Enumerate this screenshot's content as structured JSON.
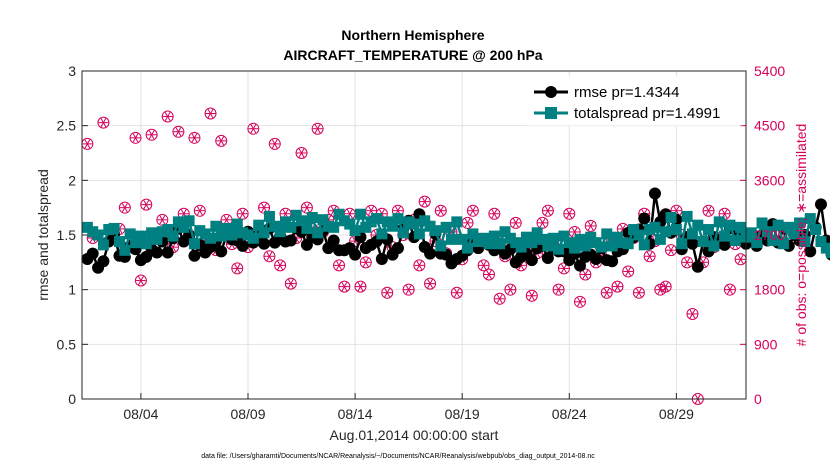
{
  "colors": {
    "rmse": "#000000",
    "totalspread": "#008080",
    "obs": "#d6005a",
    "grid": "#e2e2e2"
  },
  "chart_data": {
    "type": "line",
    "title": "Northern Hemisphere",
    "subtitle": "AIRCRAFT_TEMPERATURE @ 200 hPa",
    "xlabel": "Aug.01,2014 00:00:00 start",
    "ylabel": "rmse and totalspread",
    "y2label": "# of obs: o=possible; ∗=assimilated",
    "footer": "data file: /Users/gharamti/Documents/NCAR/Reanalysis/~/Documents/NCAR/Reanalysis/webpub/obs_diag_output_2014-08.nc",
    "xlim": [
      1.0,
      32.0
    ],
    "ylim": [
      0,
      3
    ],
    "y2lim": [
      0,
      5400
    ],
    "x_ticks": [
      3.75,
      8.75,
      13.75,
      18.75,
      23.75,
      28.75
    ],
    "x_tick_labels": [
      "08/04",
      "08/09",
      "08/14",
      "08/19",
      "08/24",
      "08/29"
    ],
    "y_ticks": [
      0,
      0.5,
      1,
      1.5,
      2,
      2.5,
      3
    ],
    "y_tick_labels": [
      "0",
      "0.5",
      "1",
      "1.5",
      "2",
      "2.5",
      "3"
    ],
    "y2_ticks": [
      0,
      900,
      1800,
      2700,
      3600,
      4500,
      5400
    ],
    "y2_tick_labels": [
      "0",
      "900",
      "1800",
      "2700",
      "3600",
      "4500",
      "5400"
    ],
    "grid": true,
    "legend_position": "top-right",
    "series": [
      {
        "name": "rmse pr=1.4344",
        "axis": "left",
        "values": [
          1.28,
          1.33,
          1.2,
          1.26,
          1.44,
          1.51,
          1.31,
          1.3,
          1.4,
          1.37,
          1.27,
          1.3,
          1.37,
          1.34,
          1.44,
          1.34,
          1.47,
          1.56,
          1.44,
          1.5,
          1.31,
          1.41,
          1.34,
          1.39,
          1.44,
          1.35,
          1.5,
          1.46,
          1.45,
          1.4,
          1.53,
          1.43,
          1.5,
          1.42,
          1.56,
          1.43,
          1.49,
          1.44,
          1.45,
          1.56,
          1.53,
          1.41,
          1.48,
          1.46,
          1.54,
          1.38,
          1.45,
          1.36,
          1.36,
          1.38,
          1.32,
          1.48,
          1.38,
          1.41,
          1.44,
          1.28,
          1.46,
          1.32,
          1.38,
          1.56,
          1.63,
          1.48,
          1.69,
          1.39,
          1.33,
          1.51,
          1.33,
          1.32,
          1.24,
          1.28,
          1.31,
          1.36,
          1.43,
          1.38,
          1.45,
          1.41,
          1.36,
          1.42,
          1.33,
          1.37,
          1.25,
          1.3,
          1.33,
          1.27,
          1.38,
          1.4,
          1.29,
          1.37,
          1.35,
          1.35,
          1.27,
          1.33,
          1.22,
          1.3,
          1.32,
          1.28,
          1.38,
          1.27,
          1.26,
          1.35,
          1.37,
          1.52,
          1.48,
          1.55,
          1.65,
          1.42,
          1.88,
          1.62,
          1.69,
          1.52,
          1.64,
          1.37,
          1.48,
          1.42,
          1.21,
          1.44,
          1.35,
          1.48,
          1.43,
          1.41,
          1.56,
          1.55,
          1.5,
          1.42,
          1.47,
          1.4,
          1.5,
          1.45,
          1.6,
          1.43,
          1.56,
          1.4,
          1.5,
          1.45,
          1.5,
          1.35,
          1.57,
          1.78,
          1.45,
          1.32
        ]
      },
      {
        "name": "totalspread pr=1.4991",
        "axis": "left",
        "values": [
          1.57,
          1.53,
          1.5,
          1.41,
          1.55,
          1.56,
          1.44,
          1.36,
          1.51,
          1.43,
          1.49,
          1.42,
          1.52,
          1.46,
          1.53,
          1.55,
          1.49,
          1.62,
          1.57,
          1.63,
          1.42,
          1.54,
          1.51,
          1.47,
          1.58,
          1.49,
          1.56,
          1.5,
          1.6,
          1.52,
          1.5,
          1.47,
          1.59,
          1.52,
          1.67,
          1.58,
          1.53,
          1.62,
          1.57,
          1.68,
          1.63,
          1.56,
          1.66,
          1.52,
          1.64,
          1.58,
          1.57,
          1.69,
          1.63,
          1.6,
          1.54,
          1.69,
          1.57,
          1.62,
          1.65,
          1.51,
          1.62,
          1.58,
          1.65,
          1.52,
          1.62,
          1.6,
          1.51,
          1.63,
          1.58,
          1.54,
          1.4,
          1.57,
          1.46,
          1.62,
          1.46,
          1.38,
          1.51,
          1.44,
          1.47,
          1.42,
          1.49,
          1.42,
          1.53,
          1.47,
          1.43,
          1.39,
          1.48,
          1.43,
          1.52,
          1.46,
          1.4,
          1.47,
          1.37,
          1.49,
          1.43,
          1.38,
          1.46,
          1.4,
          1.48,
          1.43,
          1.39,
          1.51,
          1.4,
          1.48,
          1.43,
          1.42,
          1.55,
          1.5,
          1.41,
          1.55,
          1.57,
          1.46,
          1.53,
          1.66,
          1.55,
          1.42,
          1.67,
          1.51,
          1.59,
          1.44,
          1.55,
          1.4,
          1.62,
          1.49,
          1.59,
          1.45,
          1.57,
          1.48,
          1.52,
          1.43,
          1.61,
          1.53,
          1.45,
          1.59,
          1.42,
          1.57,
          1.51,
          1.61,
          1.44,
          1.65,
          1.55,
          1.44,
          1.38,
          1.34
        ]
      },
      {
        "name": "possible",
        "axis": "right",
        "x": [
          1.25,
          1.5,
          2.0,
          2.75,
          3.0,
          3.25,
          3.5,
          3.75,
          4.0,
          4.25,
          4.75,
          5.0,
          5.25,
          5.5,
          5.75,
          6.0,
          6.25,
          6.5,
          6.75,
          7.0,
          7.25,
          7.5,
          7.75,
          8.0,
          8.25,
          8.5,
          8.75,
          9.0,
          9.25,
          9.5,
          9.75,
          10.0,
          10.25,
          10.5,
          10.75,
          11.0,
          11.25,
          11.5,
          11.75,
          12.0,
          12.25,
          12.5,
          12.75,
          13.0,
          13.25,
          13.5,
          13.75,
          14.0,
          14.25,
          14.5,
          14.75,
          15.0,
          15.25,
          15.5,
          15.75,
          16.0,
          16.25,
          16.5,
          16.75,
          17.0,
          17.25,
          17.5,
          17.75,
          18.0,
          18.25,
          18.5,
          18.75,
          19.0,
          19.25,
          19.5,
          19.75,
          20.0,
          20.25,
          20.5,
          20.75,
          21.0,
          21.25,
          21.5,
          21.75,
          22.0,
          22.25,
          22.5,
          22.75,
          23.0,
          23.25,
          23.5,
          23.75,
          24.0,
          24.25,
          24.5,
          24.75,
          25.0,
          25.25,
          25.5,
          25.75,
          26.0,
          26.25,
          26.5,
          26.75,
          27.0,
          27.25,
          27.5,
          27.75,
          28.0,
          28.25,
          28.5,
          28.75,
          29.0,
          29.25,
          29.5,
          29.75,
          30.0,
          30.25,
          30.5,
          30.75,
          31.0,
          31.25,
          31.5,
          31.75
        ],
        "values": [
          4200,
          2650,
          4550,
          2800,
          3150,
          2500,
          4300,
          1950,
          3200,
          4350,
          2950,
          4650,
          2500,
          4400,
          3050,
          2650,
          4300,
          3100,
          2600,
          4700,
          2450,
          4250,
          2950,
          2550,
          2150,
          3050,
          2500,
          4450,
          2650,
          3150,
          2350,
          4200,
          2200,
          3050,
          1900,
          2650,
          4050,
          3150,
          2800,
          4450,
          2750,
          2950,
          3100,
          2200,
          1850,
          3050,
          2600,
          1850,
          2250,
          3100,
          2700,
          3050,
          1750,
          2500,
          3100,
          2700,
          1800,
          2950,
          2200,
          3250,
          1900,
          2600,
          3100,
          2400,
          2750,
          1750,
          2300,
          2900,
          3100,
          2600,
          2200,
          2050,
          3050,
          1650,
          2350,
          1800,
          2900,
          2200,
          2550,
          1700,
          2400,
          2900,
          3100,
          2550,
          1800,
          2150,
          3050,
          2750,
          1600,
          2050,
          2850,
          2250,
          2350,
          1750,
          2600,
          1850,
          2800,
          2100,
          2650,
          1750,
          3050,
          2350,
          2600,
          1800,
          1850,
          2450,
          3100,
          2700,
          2250,
          1400,
          0,
          2250,
          3100,
          2500,
          2650,
          3050,
          1800,
          2550,
          2300
        ]
      },
      {
        "name": "assimilated",
        "axis": "right",
        "x": [
          1.25,
          1.5,
          2.0,
          2.75,
          3.0,
          3.25,
          3.5,
          3.75,
          4.0,
          4.25,
          4.75,
          5.0,
          5.25,
          5.5,
          5.75,
          6.0,
          6.25,
          6.5,
          6.75,
          7.0,
          7.25,
          7.5,
          7.75,
          8.0,
          8.25,
          8.5,
          8.75,
          9.0,
          9.25,
          9.5,
          9.75,
          10.0,
          10.25,
          10.5,
          10.75,
          11.0,
          11.25,
          11.5,
          11.75,
          12.0,
          12.25,
          12.5,
          12.75,
          13.0,
          13.25,
          13.5,
          13.75,
          14.0,
          14.25,
          14.5,
          14.75,
          15.0,
          15.25,
          15.5,
          15.75,
          16.0,
          16.25,
          16.5,
          16.75,
          17.0,
          17.25,
          17.5,
          17.75,
          18.0,
          18.25,
          18.5,
          18.75,
          19.0,
          19.25,
          19.5,
          19.75,
          20.0,
          20.25,
          20.5,
          20.75,
          21.0,
          21.25,
          21.5,
          21.75,
          22.0,
          22.25,
          22.5,
          22.75,
          23.0,
          23.25,
          23.5,
          23.75,
          24.0,
          24.25,
          24.5,
          24.75,
          25.0,
          25.25,
          25.5,
          25.75,
          26.0,
          26.25,
          26.5,
          26.75,
          27.0,
          27.25,
          27.5,
          27.75,
          28.0,
          28.25,
          28.5,
          28.75,
          29.0,
          29.25,
          29.5,
          29.75,
          30.0,
          30.25,
          30.5,
          30.75,
          31.0,
          31.25,
          31.5,
          31.75
        ],
        "values": [
          4200,
          2650,
          4550,
          2800,
          3150,
          2500,
          4300,
          1950,
          3200,
          4350,
          2950,
          4650,
          2500,
          4400,
          3050,
          2650,
          4300,
          3100,
          2600,
          4700,
          2450,
          4250,
          2950,
          2550,
          2150,
          3050,
          2500,
          4450,
          2650,
          3150,
          2350,
          4200,
          2200,
          3050,
          1900,
          2650,
          4050,
          3150,
          2800,
          4450,
          2750,
          2950,
          3100,
          2200,
          1850,
          3050,
          2600,
          1850,
          2250,
          3100,
          2700,
          3050,
          1750,
          2500,
          3100,
          2700,
          1800,
          2950,
          2200,
          3250,
          1900,
          2600,
          3100,
          2400,
          2750,
          1750,
          2300,
          2900,
          3100,
          2600,
          2200,
          2050,
          3050,
          1650,
          2350,
          1800,
          2900,
          2200,
          2550,
          1700,
          2400,
          2900,
          3100,
          2550,
          1800,
          2150,
          3050,
          2750,
          1600,
          2050,
          2850,
          2250,
          2350,
          1750,
          2600,
          1850,
          2800,
          2100,
          2650,
          1750,
          3050,
          2350,
          2600,
          1800,
          1850,
          2450,
          3100,
          2700,
          2250,
          1400,
          0,
          2250,
          3100,
          2500,
          2650,
          3050,
          1800,
          2550,
          2300
        ]
      }
    ]
  }
}
